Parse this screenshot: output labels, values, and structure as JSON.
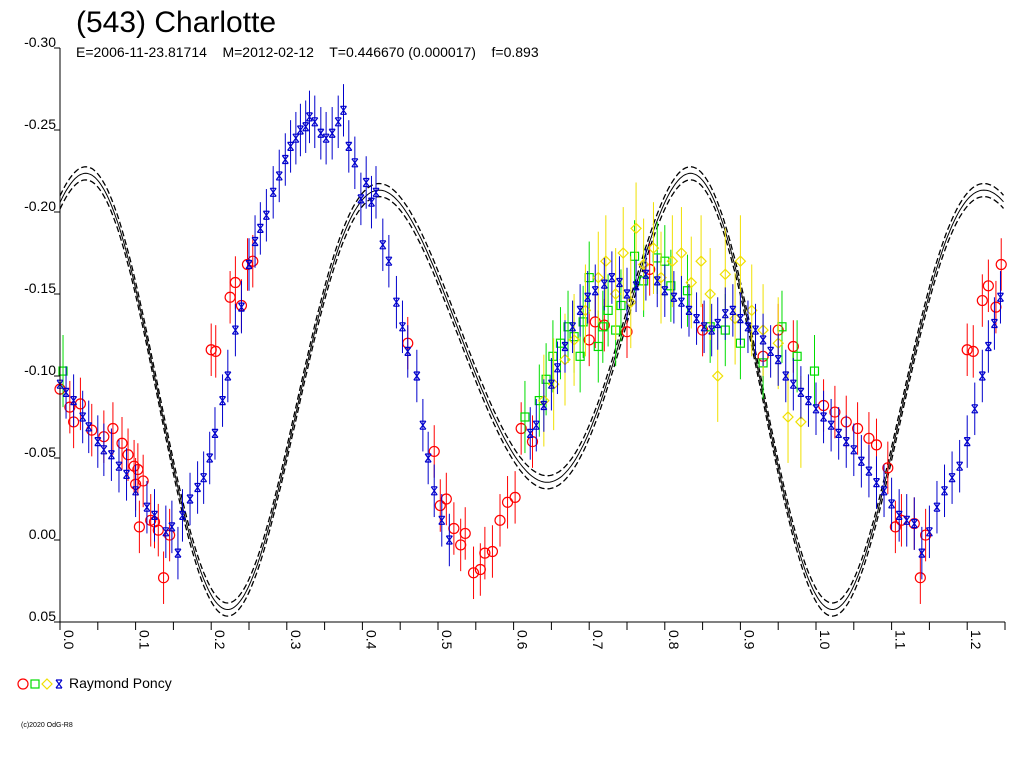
{
  "chart_data": {
    "type": "scatter",
    "title": "(543) Charlotte",
    "subtitle": "E=2006-11-23.81714    M=2012-02-12    T=0.446670 (0.000017)    f=0.893",
    "xlim": [
      0.0,
      1.25
    ],
    "ylim": [
      -0.3,
      0.05
    ],
    "y_inverted": true,
    "grid": false,
    "x_ticks": [
      "0.0",
      "0.1",
      "0.2",
      "0.3",
      "0.4",
      "0.5",
      "0.6",
      "0.7",
      "0.8",
      "0.9",
      "1.0",
      "1.1",
      "1.2"
    ],
    "y_ticks": [
      "-0.30",
      "-0.25",
      "-0.20",
      "-0.15",
      "-0.10",
      "-0.05",
      "0.00",
      "0.05"
    ],
    "legend": {
      "placement": "bottom-left",
      "label": "Raymond Poncy",
      "symbols": [
        "circle",
        "square",
        "diamond",
        "star"
      ]
    },
    "copyright": "(c)2020 OdG-R8",
    "series": [
      {
        "marker": "circle",
        "color": "#ff0000",
        "err": 0.016,
        "points": [
          [
            0.0,
            -0.092
          ],
          [
            0.013,
            -0.081
          ],
          [
            0.018,
            -0.072
          ],
          [
            0.027,
            -0.083
          ],
          [
            0.042,
            -0.067
          ],
          [
            0.058,
            -0.063
          ],
          [
            0.07,
            -0.068
          ],
          [
            0.082,
            -0.059
          ],
          [
            0.09,
            -0.052
          ],
          [
            0.098,
            -0.045
          ],
          [
            0.103,
            -0.043
          ],
          [
            0.11,
            -0.036
          ],
          [
            0.1,
            -0.034
          ],
          [
            0.105,
            -0.008
          ],
          [
            0.12,
            -0.012
          ],
          [
            0.125,
            -0.011
          ],
          [
            0.13,
            -0.006
          ],
          [
            0.137,
            0.023
          ],
          [
            0.145,
            -0.003
          ],
          [
            0.2,
            -0.116
          ],
          [
            0.206,
            -0.115
          ],
          [
            0.225,
            -0.148
          ],
          [
            0.232,
            -0.157
          ],
          [
            0.24,
            -0.143
          ],
          [
            0.248,
            -0.168
          ],
          [
            0.255,
            -0.17
          ],
          [
            0.46,
            -0.12
          ],
          [
            0.495,
            -0.054
          ],
          [
            0.503,
            -0.021
          ],
          [
            0.511,
            -0.025
          ],
          [
            0.521,
            -0.007
          ],
          [
            0.53,
            0.003
          ],
          [
            0.536,
            -0.004
          ],
          [
            0.547,
            0.02
          ],
          [
            0.556,
            0.018
          ],
          [
            0.562,
            0.008
          ],
          [
            0.572,
            0.007
          ],
          [
            0.582,
            -0.012
          ],
          [
            0.592,
            -0.023
          ],
          [
            0.602,
            -0.026
          ],
          [
            0.61,
            -0.068
          ],
          [
            0.625,
            -0.06
          ],
          [
            0.7,
            -0.122
          ],
          [
            0.708,
            -0.133
          ],
          [
            0.72,
            -0.131
          ],
          [
            0.75,
            -0.127
          ],
          [
            0.78,
            -0.165
          ],
          [
            0.85,
            -0.128
          ],
          [
            0.93,
            -0.112
          ],
          [
            0.95,
            -0.128
          ],
          [
            0.97,
            -0.118
          ],
          [
            1.01,
            -0.082
          ],
          [
            1.025,
            -0.078
          ],
          [
            1.04,
            -0.072
          ],
          [
            1.055,
            -0.068
          ],
          [
            1.07,
            -0.062
          ],
          [
            1.08,
            -0.058
          ],
          [
            1.095,
            -0.044
          ],
          [
            1.105,
            -0.008
          ],
          [
            1.113,
            -0.012
          ],
          [
            1.13,
            -0.01
          ],
          [
            1.138,
            0.023
          ],
          [
            1.145,
            -0.003
          ],
          [
            1.2,
            -0.116
          ],
          [
            1.208,
            -0.115
          ],
          [
            1.22,
            -0.146
          ],
          [
            1.228,
            -0.155
          ],
          [
            1.238,
            -0.142
          ],
          [
            1.245,
            -0.168
          ]
        ]
      },
      {
        "marker": "square",
        "color": "#00dd00",
        "err": 0.022,
        "points": [
          [
            0.004,
            -0.103
          ],
          [
            0.615,
            -0.075
          ],
          [
            0.634,
            -0.085
          ],
          [
            0.643,
            -0.098
          ],
          [
            0.652,
            -0.112
          ],
          [
            0.662,
            -0.12
          ],
          [
            0.672,
            -0.13
          ],
          [
            0.68,
            -0.124
          ],
          [
            0.688,
            -0.112
          ],
          [
            0.692,
            -0.133
          ],
          [
            0.7,
            -0.16
          ],
          [
            0.712,
            -0.118
          ],
          [
            0.718,
            -0.13
          ],
          [
            0.725,
            -0.14
          ],
          [
            0.735,
            -0.128
          ],
          [
            0.742,
            -0.143
          ],
          [
            0.76,
            -0.173
          ],
          [
            0.772,
            -0.158
          ],
          [
            0.79,
            -0.172
          ],
          [
            0.8,
            -0.17
          ],
          [
            0.808,
            -0.155
          ],
          [
            0.83,
            -0.152
          ],
          [
            0.86,
            -0.13
          ],
          [
            0.88,
            -0.128
          ],
          [
            0.9,
            -0.12
          ],
          [
            0.93,
            -0.108
          ],
          [
            0.955,
            -0.13
          ],
          [
            0.975,
            -0.112
          ],
          [
            0.998,
            -0.103
          ]
        ]
      },
      {
        "marker": "diamond",
        "color": "#f0e000",
        "err": 0.028,
        "points": [
          [
            0.64,
            -0.085
          ],
          [
            0.653,
            -0.095
          ],
          [
            0.668,
            -0.11
          ],
          [
            0.68,
            -0.122
          ],
          [
            0.695,
            -0.14
          ],
          [
            0.712,
            -0.16
          ],
          [
            0.722,
            -0.17
          ],
          [
            0.735,
            -0.15
          ],
          [
            0.745,
            -0.175
          ],
          [
            0.755,
            -0.145
          ],
          [
            0.762,
            -0.19
          ],
          [
            0.772,
            -0.168
          ],
          [
            0.785,
            -0.178
          ],
          [
            0.795,
            -0.16
          ],
          [
            0.81,
            -0.17
          ],
          [
            0.822,
            -0.175
          ],
          [
            0.835,
            -0.157
          ],
          [
            0.848,
            -0.17
          ],
          [
            0.86,
            -0.15
          ],
          [
            0.87,
            -0.1
          ],
          [
            0.88,
            -0.162
          ],
          [
            0.893,
            -0.135
          ],
          [
            0.9,
            -0.17
          ],
          [
            0.915,
            -0.14
          ],
          [
            0.93,
            -0.128
          ],
          [
            0.95,
            -0.12
          ],
          [
            0.963,
            -0.075
          ],
          [
            0.98,
            -0.072
          ]
        ]
      },
      {
        "marker": "star",
        "color": "#0000cc",
        "err": 0.016,
        "points": [
          [
            0.0,
            -0.095
          ],
          [
            0.008,
            -0.09
          ],
          [
            0.018,
            -0.085
          ],
          [
            0.03,
            -0.075
          ],
          [
            0.038,
            -0.069
          ],
          [
            0.05,
            -0.06
          ],
          [
            0.058,
            -0.055
          ],
          [
            0.068,
            -0.052
          ],
          [
            0.078,
            -0.045
          ],
          [
            0.088,
            -0.04
          ],
          [
            0.1,
            -0.03
          ],
          [
            0.115,
            -0.02
          ],
          [
            0.125,
            -0.015
          ],
          [
            0.14,
            -0.005
          ],
          [
            0.148,
            -0.008
          ],
          [
            0.156,
            0.008
          ],
          [
            0.162,
            -0.015
          ],
          [
            0.172,
            -0.025
          ],
          [
            0.182,
            -0.032
          ],
          [
            0.19,
            -0.038
          ],
          [
            0.198,
            -0.05
          ],
          [
            0.205,
            -0.065
          ],
          [
            0.215,
            -0.085
          ],
          [
            0.222,
            -0.1
          ],
          [
            0.232,
            -0.128
          ],
          [
            0.24,
            -0.142
          ],
          [
            0.25,
            -0.168
          ],
          [
            0.258,
            -0.182
          ],
          [
            0.265,
            -0.19
          ],
          [
            0.273,
            -0.198
          ],
          [
            0.282,
            -0.212
          ],
          [
            0.29,
            -0.222
          ],
          [
            0.298,
            -0.232
          ],
          [
            0.305,
            -0.24
          ],
          [
            0.312,
            -0.245
          ],
          [
            0.318,
            -0.25
          ],
          [
            0.325,
            -0.252
          ],
          [
            0.33,
            -0.258
          ],
          [
            0.337,
            -0.255
          ],
          [
            0.345,
            -0.248
          ],
          [
            0.352,
            -0.245
          ],
          [
            0.36,
            -0.248
          ],
          [
            0.368,
            -0.255
          ],
          [
            0.375,
            -0.262
          ],
          [
            0.382,
            -0.24
          ],
          [
            0.39,
            -0.23
          ],
          [
            0.398,
            -0.208
          ],
          [
            0.405,
            -0.218
          ],
          [
            0.412,
            -0.206
          ],
          [
            0.418,
            -0.212
          ],
          [
            0.427,
            -0.18
          ],
          [
            0.435,
            -0.17
          ],
          [
            0.445,
            -0.145
          ],
          [
            0.453,
            -0.13
          ],
          [
            0.46,
            -0.115
          ],
          [
            0.472,
            -0.1
          ],
          [
            0.48,
            -0.07
          ],
          [
            0.487,
            -0.05
          ],
          [
            0.495,
            -0.03
          ],
          [
            0.505,
            -0.012
          ],
          [
            0.515,
            0.0
          ],
          [
            0.622,
            -0.065
          ],
          [
            0.63,
            -0.07
          ],
          [
            0.64,
            -0.082
          ],
          [
            0.65,
            -0.095
          ],
          [
            0.658,
            -0.105
          ],
          [
            0.668,
            -0.118
          ],
          [
            0.678,
            -0.13
          ],
          [
            0.688,
            -0.14
          ],
          [
            0.698,
            -0.148
          ],
          [
            0.708,
            -0.152
          ],
          [
            0.72,
            -0.156
          ],
          [
            0.73,
            -0.16
          ],
          [
            0.74,
            -0.157
          ],
          [
            0.75,
            -0.15
          ],
          [
            0.762,
            -0.155
          ],
          [
            0.775,
            -0.162
          ],
          [
            0.79,
            -0.158
          ],
          [
            0.8,
            -0.152
          ],
          [
            0.812,
            -0.148
          ],
          [
            0.822,
            -0.145
          ],
          [
            0.832,
            -0.14
          ],
          [
            0.842,
            -0.135
          ],
          [
            0.852,
            -0.13
          ],
          [
            0.862,
            -0.128
          ],
          [
            0.87,
            -0.132
          ],
          [
            0.88,
            -0.138
          ],
          [
            0.89,
            -0.14
          ],
          [
            0.9,
            -0.135
          ],
          [
            0.91,
            -0.13
          ],
          [
            0.92,
            -0.128
          ],
          [
            0.93,
            -0.122
          ],
          [
            0.94,
            -0.115
          ],
          [
            0.95,
            -0.11
          ],
          [
            0.96,
            -0.1
          ],
          [
            0.97,
            -0.095
          ],
          [
            0.98,
            -0.09
          ],
          [
            0.99,
            -0.085
          ],
          [
            1.0,
            -0.08
          ],
          [
            1.01,
            -0.075
          ],
          [
            1.02,
            -0.07
          ],
          [
            1.03,
            -0.065
          ],
          [
            1.04,
            -0.06
          ],
          [
            1.05,
            -0.055
          ],
          [
            1.06,
            -0.048
          ],
          [
            1.07,
            -0.042
          ],
          [
            1.08,
            -0.035
          ],
          [
            1.09,
            -0.03
          ],
          [
            1.1,
            -0.022
          ],
          [
            1.11,
            -0.015
          ],
          [
            1.12,
            -0.012
          ],
          [
            1.13,
            -0.01
          ],
          [
            1.14,
            0.008
          ],
          [
            1.15,
            -0.005
          ],
          [
            1.16,
            -0.02
          ],
          [
            1.17,
            -0.03
          ],
          [
            1.18,
            -0.038
          ],
          [
            1.19,
            -0.045
          ],
          [
            1.2,
            -0.06
          ],
          [
            1.21,
            -0.08
          ],
          [
            1.22,
            -0.1
          ],
          [
            1.228,
            -0.118
          ],
          [
            1.236,
            -0.132
          ],
          [
            1.244,
            -0.148
          ]
        ]
      }
    ]
  }
}
